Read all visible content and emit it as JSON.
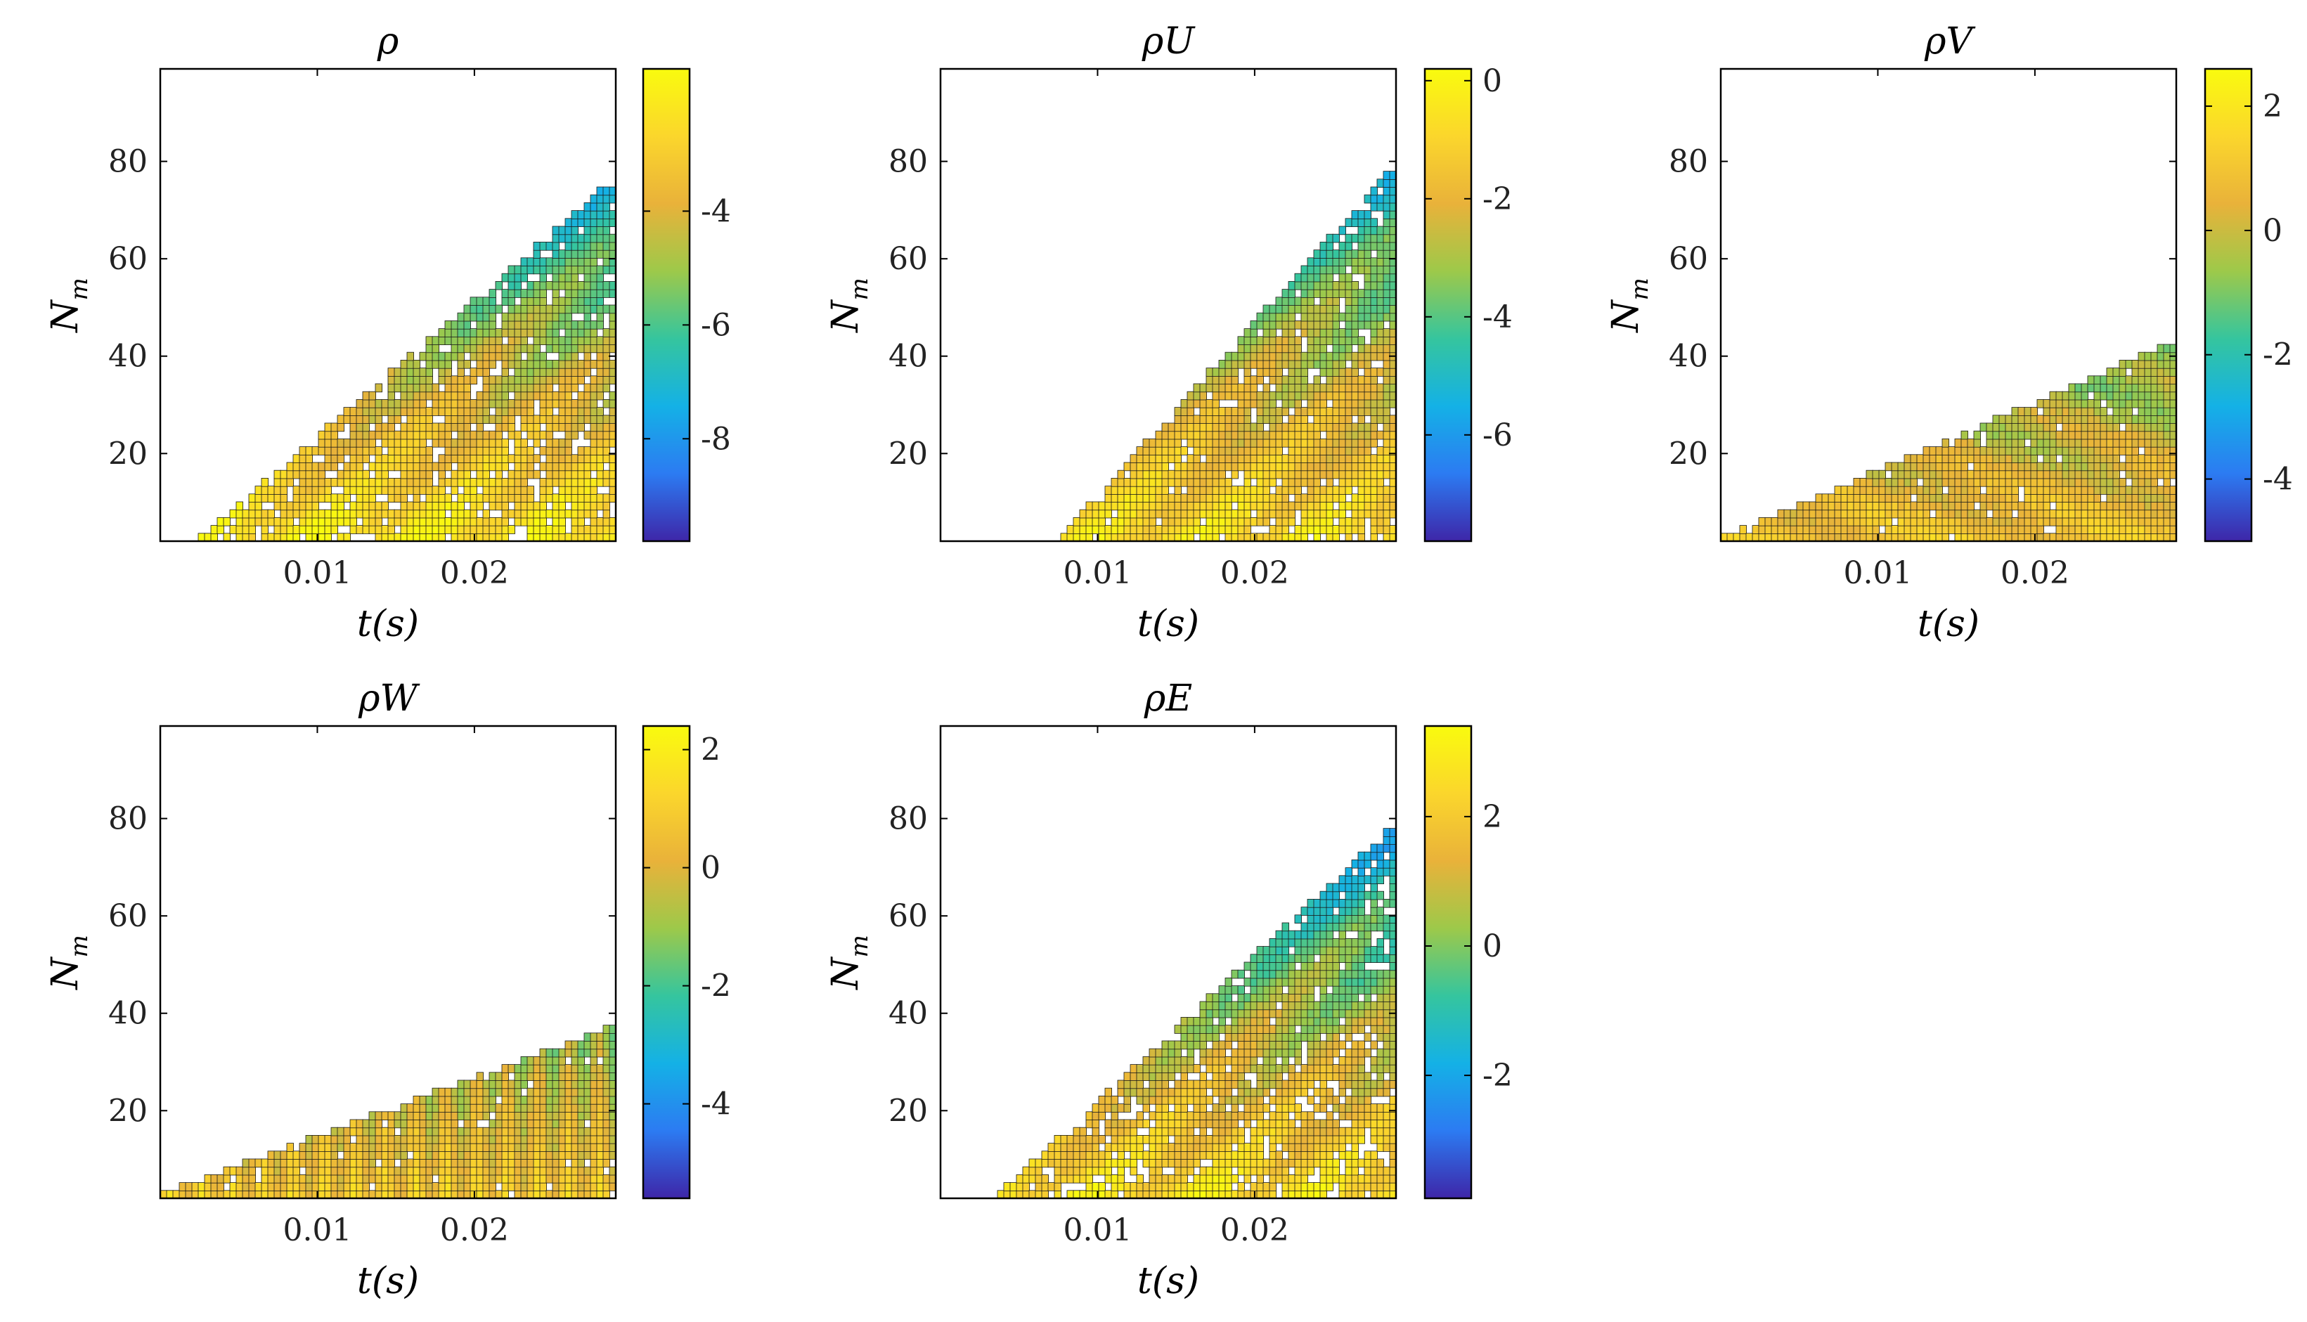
{
  "figure": {
    "colormap": [
      "#3e26a8",
      "#2c7bf2",
      "#14b1e6",
      "#35c59e",
      "#9dc94a",
      "#e9b23a",
      "#fbd62c",
      "#f9fb0e"
    ],
    "axis_colors": {
      "frame": "#000000",
      "contour_line": "#1a1a1a"
    }
  },
  "chart_data": [
    {
      "type": "heatmap",
      "title": "ρ",
      "xlabel_main": "t",
      "xlabel_unit": "(s)",
      "ylabel_main": "N",
      "ylabel_sub": "m",
      "xlim": [
        0,
        0.029
      ],
      "ylim": [
        2,
        99
      ],
      "xticks": [
        0.01,
        0.02
      ],
      "xtick_labels": [
        "0.01",
        "0.02"
      ],
      "yticks": [
        20,
        40,
        60,
        80
      ],
      "ytick_labels": [
        "20",
        "40",
        "60",
        "80"
      ],
      "clim": [
        -9.8,
        -1.5
      ],
      "cticks": [
        -8,
        -6,
        -4
      ],
      "ctick_labels": [
        "-8",
        "-6",
        "-4"
      ],
      "fill_tmin": 0.003,
      "fill_slope": 2800,
      "base": -1.8,
      "gain": -6.5,
      "pattern": "diagonal",
      "noise": 0.85
    },
    {
      "type": "heatmap",
      "title": "ρU",
      "xlabel_main": "t",
      "xlabel_unit": "(s)",
      "ylabel_main": "N",
      "ylabel_sub": "m",
      "xlim": [
        0,
        0.029
      ],
      "ylim": [
        2,
        99
      ],
      "xticks": [
        0.01,
        0.02
      ],
      "xtick_labels": [
        "0.01",
        "0.02"
      ],
      "yticks": [
        20,
        40,
        60,
        80
      ],
      "ytick_labels": [
        "20",
        "40",
        "60",
        "80"
      ],
      "clim": [
        -7.8,
        0.2
      ],
      "cticks": [
        -6,
        -4,
        -2,
        0
      ],
      "ctick_labels": [
        "-6",
        "-4",
        "-2",
        "0"
      ],
      "fill_tmin": 0.008,
      "fill_slope": 3600,
      "base": -0.4,
      "gain": -5.5,
      "pattern": "diagonal",
      "noise": 0.9
    },
    {
      "type": "heatmap",
      "title": "ρV",
      "xlabel_main": "t",
      "xlabel_unit": "(s)",
      "ylabel_main": "N",
      "ylabel_sub": "m",
      "xlim": [
        0,
        0.029
      ],
      "ylim": [
        2,
        99
      ],
      "xticks": [
        0.01,
        0.02
      ],
      "xtick_labels": [
        "0.01",
        "0.02"
      ],
      "yticks": [
        20,
        40,
        60,
        80
      ],
      "ytick_labels": [
        "20",
        "40",
        "60",
        "80"
      ],
      "clim": [
        -5.0,
        2.6
      ],
      "cticks": [
        -4,
        -2,
        0,
        2
      ],
      "ctick_labels": [
        "-4",
        "-2",
        "0",
        "2"
      ],
      "fill_tmin": 0.001,
      "fill_slope": 1400,
      "base": 1.2,
      "gain": -4.8,
      "pattern": "band",
      "noise": 0.95
    },
    {
      "type": "heatmap",
      "title": "ρW",
      "xlabel_main": "t",
      "xlabel_unit": "(s)",
      "ylabel_main": "N",
      "ylabel_sub": "m",
      "xlim": [
        0,
        0.029
      ],
      "ylim": [
        2,
        99
      ],
      "xticks": [
        0.01,
        0.02
      ],
      "xtick_labels": [
        "0.01",
        "0.02"
      ],
      "yticks": [
        20,
        40,
        60,
        80
      ],
      "ytick_labels": [
        "20",
        "40",
        "60",
        "80"
      ],
      "clim": [
        -5.6,
        2.4
      ],
      "cticks": [
        -4,
        -2,
        0,
        2
      ],
      "ctick_labels": [
        "-4",
        "-2",
        "0",
        "2"
      ],
      "fill_tmin": 0.001,
      "fill_slope": 1200,
      "base": 1.0,
      "gain": -5.2,
      "pattern": "vertical",
      "noise": 0.95
    },
    {
      "type": "heatmap",
      "title": "ρE",
      "xlabel_main": "t",
      "xlabel_unit": "(s)",
      "ylabel_main": "N",
      "ylabel_sub": "m",
      "xlim": [
        0,
        0.029
      ],
      "ylim": [
        2,
        99
      ],
      "xticks": [
        0.01,
        0.02
      ],
      "xtick_labels": [
        "0.01",
        "0.02"
      ],
      "yticks": [
        20,
        40,
        60,
        80
      ],
      "ytick_labels": [
        "20",
        "40",
        "60",
        "80"
      ],
      "clim": [
        -3.9,
        3.4
      ],
      "cticks": [
        -2,
        0,
        2
      ],
      "ctick_labels": [
        "-2",
        "0",
        "2"
      ],
      "fill_tmin": 0.004,
      "fill_slope": 3000,
      "base": 2.9,
      "gain": -5.6,
      "pattern": "diagonal",
      "noise": 0.85
    }
  ]
}
